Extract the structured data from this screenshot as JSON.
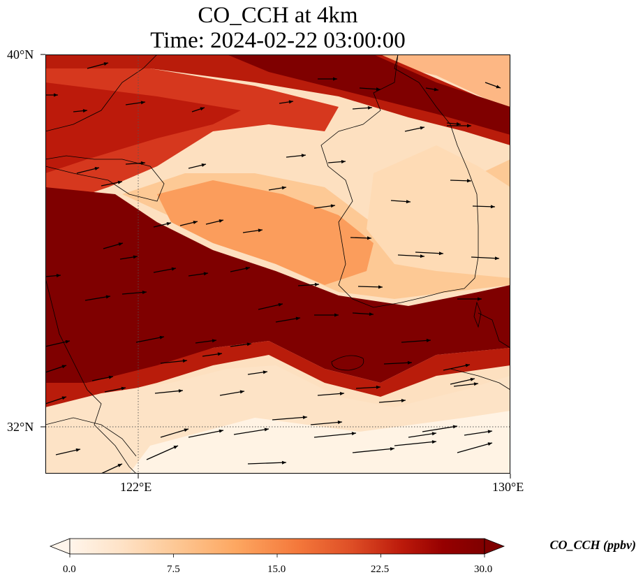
{
  "title": {
    "line1": "CO_CCH at 4km",
    "line2": "Time: 2024-02-22 03:00:00"
  },
  "axes": {
    "lat_ticks": [
      "40°N",
      "32°N"
    ],
    "lon_ticks": [
      "122°E",
      "130°E"
    ],
    "lat_range": [
      31,
      40
    ],
    "lon_range": [
      120,
      130
    ]
  },
  "colorbar": {
    "label": "CO_CCH (ppbv)",
    "ticks": [
      "0.0",
      "7.5",
      "15.0",
      "22.5",
      "30.0"
    ],
    "range": [
      0,
      30
    ],
    "colormap": [
      "#fff5eb",
      "#fee3c8",
      "#fdc997",
      "#fda761",
      "#f4783b",
      "#de4e26",
      "#bc1a0b",
      "#960000",
      "#7f0000"
    ]
  },
  "field": {
    "variable": "CO_CCH",
    "level": "4km",
    "units": "ppbv"
  }
}
